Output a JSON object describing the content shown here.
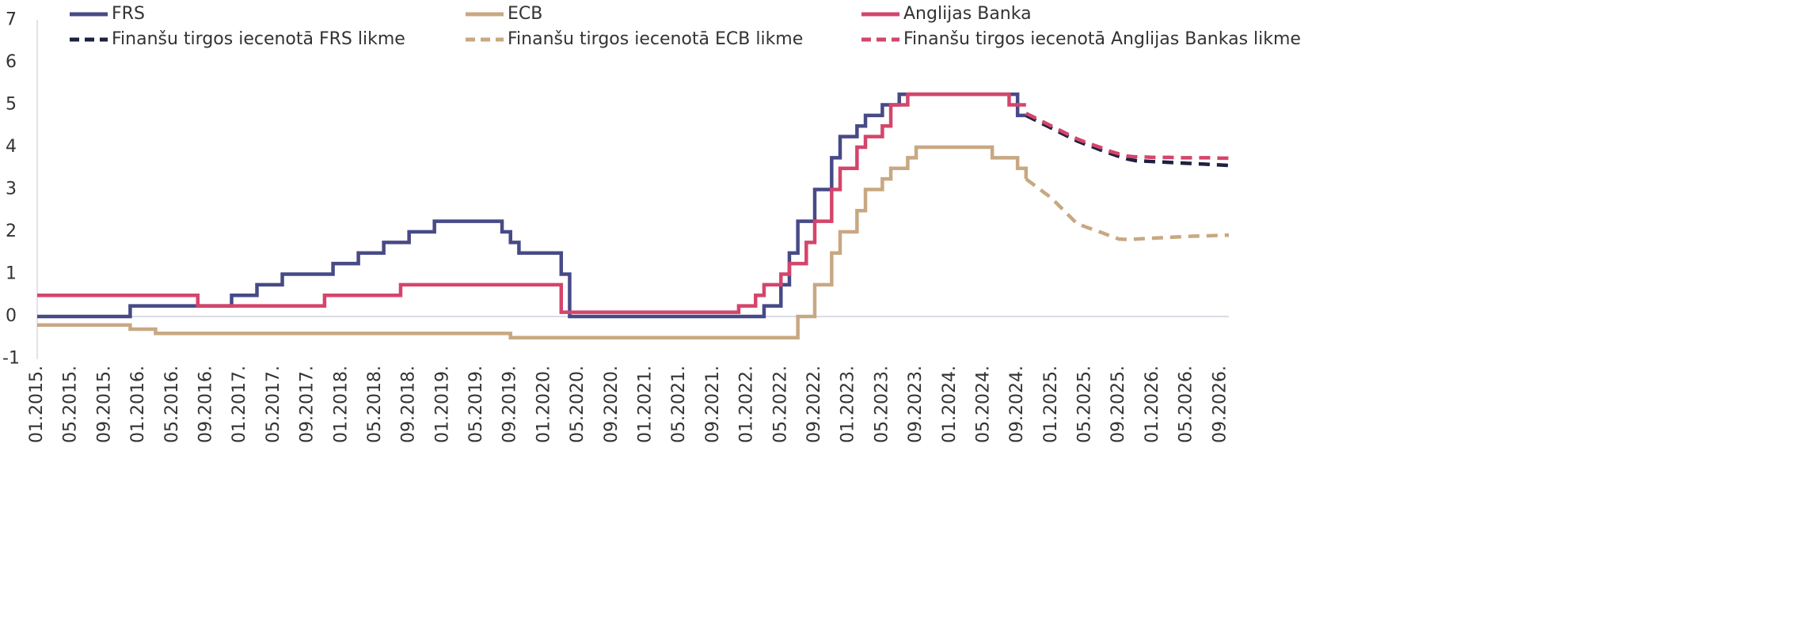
{
  "chart_data": {
    "type": "line",
    "legend": "top",
    "ylim": [
      -1,
      7
    ],
    "yticks": [
      -1,
      0,
      1,
      2,
      3,
      4,
      5,
      6,
      7
    ],
    "categories": [
      "01.2015.",
      null,
      null,
      null,
      "05.2015.",
      null,
      null,
      null,
      "09.2015.",
      null,
      null,
      null,
      "01.2016.",
      null,
      null,
      null,
      "05.2016.",
      null,
      null,
      null,
      "09.2016.",
      null,
      null,
      null,
      "01.2017.",
      null,
      null,
      null,
      "05.2017.",
      null,
      null,
      null,
      "09.2017.",
      null,
      null,
      null,
      "01.2018.",
      null,
      null,
      null,
      "05.2018.",
      null,
      null,
      null,
      "09.2018.",
      null,
      null,
      null,
      "01.2019.",
      null,
      null,
      null,
      "05.2019.",
      null,
      null,
      null,
      "09.2019.",
      null,
      null,
      null,
      "01.2020.",
      null,
      null,
      null,
      "05.2020.",
      null,
      null,
      null,
      "09.2020.",
      null,
      null,
      null,
      "01.2021.",
      null,
      null,
      null,
      "05.2021.",
      null,
      null,
      null,
      "09.2021.",
      null,
      null,
      null,
      "01.2022.",
      null,
      null,
      null,
      "05.2022.",
      null,
      null,
      null,
      "09.2022.",
      null,
      null,
      null,
      "01.2023.",
      null,
      null,
      null,
      "05.2023.",
      null,
      null,
      null,
      "09.2023.",
      null,
      null,
      null,
      "01.2024.",
      null,
      null,
      null,
      "05.2024.",
      null,
      null,
      null,
      "09.2024.",
      null,
      null,
      null,
      "01.2025.",
      null,
      null,
      null,
      "05.2025.",
      null,
      null,
      null,
      "09.2025.",
      null,
      null,
      null,
      "01.2026.",
      null,
      null,
      null,
      "05.2026.",
      null,
      null,
      null,
      "09.2026.",
      null
    ],
    "series": [
      {
        "name": "FRS",
        "color": "#474a86",
        "dash": false,
        "step": true,
        "values": [
          0,
          0,
          0,
          0,
          0,
          0,
          0,
          0,
          0,
          0,
          0,
          0.25,
          0.25,
          0.25,
          0.25,
          0.25,
          0.25,
          0.25,
          0.25,
          0.25,
          0.25,
          0.25,
          0.25,
          0.5,
          0.5,
          0.5,
          0.75,
          0.75,
          0.75,
          1,
          1,
          1,
          1,
          1,
          1,
          1.25,
          1.25,
          1.25,
          1.5,
          1.5,
          1.5,
          1.75,
          1.75,
          1.75,
          2,
          2,
          2,
          2.25,
          2.25,
          2.25,
          2.25,
          2.25,
          2.25,
          2.25,
          2.25,
          2,
          1.75,
          1.5,
          1.5,
          1.5,
          1.5,
          1.5,
          1,
          0,
          0,
          0,
          0,
          0,
          0,
          0,
          0,
          0,
          0,
          0,
          0,
          0,
          0,
          0,
          0,
          0,
          0,
          0,
          0,
          0,
          0,
          0,
          0.25,
          0.25,
          0.75,
          1.5,
          2.25,
          2.25,
          3,
          3,
          3.75,
          4.25,
          4.25,
          4.5,
          4.75,
          4.75,
          5,
          5,
          5.25,
          5.25,
          5.25,
          5.25,
          5.25,
          5.25,
          5.25,
          5.25,
          5.25,
          5.25,
          5.25,
          5.25,
          5.25,
          5.25,
          4.75,
          4.75,
          null,
          null,
          null,
          null,
          null,
          null,
          null,
          null,
          null,
          null,
          null,
          null,
          null,
          null,
          null,
          null,
          null,
          null,
          null,
          null,
          null,
          null,
          null,
          null
        ]
      },
      {
        "name": "ECB",
        "color": "#c8a882",
        "dash": false,
        "step": true,
        "values": [
          -0.2,
          -0.2,
          -0.2,
          -0.2,
          -0.2,
          -0.2,
          -0.2,
          -0.2,
          -0.2,
          -0.2,
          -0.2,
          -0.3,
          -0.3,
          -0.3,
          -0.4,
          -0.4,
          -0.4,
          -0.4,
          -0.4,
          -0.4,
          -0.4,
          -0.4,
          -0.4,
          -0.4,
          -0.4,
          -0.4,
          -0.4,
          -0.4,
          -0.4,
          -0.4,
          -0.4,
          -0.4,
          -0.4,
          -0.4,
          -0.4,
          -0.4,
          -0.4,
          -0.4,
          -0.4,
          -0.4,
          -0.4,
          -0.4,
          -0.4,
          -0.4,
          -0.4,
          -0.4,
          -0.4,
          -0.4,
          -0.4,
          -0.4,
          -0.4,
          -0.4,
          -0.4,
          -0.4,
          -0.4,
          -0.4,
          -0.5,
          -0.5,
          -0.5,
          -0.5,
          -0.5,
          -0.5,
          -0.5,
          -0.5,
          -0.5,
          -0.5,
          -0.5,
          -0.5,
          -0.5,
          -0.5,
          -0.5,
          -0.5,
          -0.5,
          -0.5,
          -0.5,
          -0.5,
          -0.5,
          -0.5,
          -0.5,
          -0.5,
          -0.5,
          -0.5,
          -0.5,
          -0.5,
          -0.5,
          -0.5,
          -0.5,
          -0.5,
          -0.5,
          -0.5,
          0,
          0,
          0.75,
          0.75,
          1.5,
          2,
          2,
          2.5,
          3,
          3,
          3.25,
          3.5,
          3.5,
          3.75,
          4,
          4,
          4,
          4,
          4,
          4,
          4,
          4,
          4,
          3.75,
          3.75,
          3.75,
          3.5,
          3.25,
          null,
          null,
          null,
          null,
          null,
          null,
          null,
          null,
          null,
          null,
          null,
          null,
          null,
          null,
          null,
          null,
          null,
          null,
          null,
          null,
          null,
          null,
          null,
          null
        ]
      },
      {
        "name": "Anglijas Banka",
        "color": "#d4456b",
        "dash": false,
        "step": true,
        "values": [
          0.5,
          0.5,
          0.5,
          0.5,
          0.5,
          0.5,
          0.5,
          0.5,
          0.5,
          0.5,
          0.5,
          0.5,
          0.5,
          0.5,
          0.5,
          0.5,
          0.5,
          0.5,
          0.5,
          0.25,
          0.25,
          0.25,
          0.25,
          0.25,
          0.25,
          0.25,
          0.25,
          0.25,
          0.25,
          0.25,
          0.25,
          0.25,
          0.25,
          0.25,
          0.5,
          0.5,
          0.5,
          0.5,
          0.5,
          0.5,
          0.5,
          0.5,
          0.5,
          0.75,
          0.75,
          0.75,
          0.75,
          0.75,
          0.75,
          0.75,
          0.75,
          0.75,
          0.75,
          0.75,
          0.75,
          0.75,
          0.75,
          0.75,
          0.75,
          0.75,
          0.75,
          0.75,
          0.1,
          0.1,
          0.1,
          0.1,
          0.1,
          0.1,
          0.1,
          0.1,
          0.1,
          0.1,
          0.1,
          0.1,
          0.1,
          0.1,
          0.1,
          0.1,
          0.1,
          0.1,
          0.1,
          0.1,
          0.1,
          0.25,
          0.25,
          0.5,
          0.75,
          0.75,
          1,
          1.25,
          1.25,
          1.75,
          2.25,
          2.25,
          3,
          3.5,
          3.5,
          4,
          4.25,
          4.25,
          4.5,
          5,
          5,
          5.25,
          5.25,
          5.25,
          5.25,
          5.25,
          5.25,
          5.25,
          5.25,
          5.25,
          5.25,
          5.25,
          5.25,
          5,
          5,
          5,
          null,
          null,
          null,
          null,
          null,
          null,
          null,
          null,
          null,
          null,
          null,
          null,
          null,
          null,
          null,
          null,
          null,
          null,
          null,
          null,
          null,
          null,
          null,
          null
        ]
      },
      {
        "name": "Finanšu tirgos iecenotā FRS likme",
        "color": "#1e2040",
        "dash": true,
        "step": false,
        "values": [
          null,
          null,
          null,
          null,
          null,
          null,
          null,
          null,
          null,
          null,
          null,
          null,
          null,
          null,
          null,
          null,
          null,
          null,
          null,
          null,
          null,
          null,
          null,
          null,
          null,
          null,
          null,
          null,
          null,
          null,
          null,
          null,
          null,
          null,
          null,
          null,
          null,
          null,
          null,
          null,
          null,
          null,
          null,
          null,
          null,
          null,
          null,
          null,
          null,
          null,
          null,
          null,
          null,
          null,
          null,
          null,
          null,
          null,
          null,
          null,
          null,
          null,
          null,
          null,
          null,
          null,
          null,
          null,
          null,
          null,
          null,
          null,
          null,
          null,
          null,
          null,
          null,
          null,
          null,
          null,
          null,
          null,
          null,
          null,
          null,
          null,
          null,
          null,
          null,
          null,
          null,
          null,
          null,
          null,
          null,
          null,
          null,
          null,
          null,
          null,
          null,
          null,
          null,
          null,
          null,
          null,
          null,
          null,
          null,
          null,
          null,
          null,
          null,
          null,
          null,
          null,
          null,
          4.75,
          4.65,
          4.55,
          4.45,
          4.35,
          4.25,
          4.15,
          4.07,
          4.0,
          3.92,
          3.85,
          3.78,
          3.72,
          3.68,
          3.67,
          3.66,
          3.65,
          3.64,
          3.63,
          3.62,
          3.61,
          3.6,
          3.59,
          3.58,
          3.57
        ]
      },
      {
        "name": "Finanšu tirgos iecenotā ECB likme",
        "color": "#c8a882",
        "dash": true,
        "step": false,
        "values": [
          null,
          null,
          null,
          null,
          null,
          null,
          null,
          null,
          null,
          null,
          null,
          null,
          null,
          null,
          null,
          null,
          null,
          null,
          null,
          null,
          null,
          null,
          null,
          null,
          null,
          null,
          null,
          null,
          null,
          null,
          null,
          null,
          null,
          null,
          null,
          null,
          null,
          null,
          null,
          null,
          null,
          null,
          null,
          null,
          null,
          null,
          null,
          null,
          null,
          null,
          null,
          null,
          null,
          null,
          null,
          null,
          null,
          null,
          null,
          null,
          null,
          null,
          null,
          null,
          null,
          null,
          null,
          null,
          null,
          null,
          null,
          null,
          null,
          null,
          null,
          null,
          null,
          null,
          null,
          null,
          null,
          null,
          null,
          null,
          null,
          null,
          null,
          null,
          null,
          null,
          null,
          null,
          null,
          null,
          null,
          null,
          null,
          null,
          null,
          null,
          null,
          null,
          null,
          null,
          null,
          null,
          null,
          null,
          null,
          null,
          null,
          null,
          null,
          null,
          null,
          null,
          null,
          3.25,
          3.1,
          2.95,
          2.8,
          2.6,
          2.4,
          2.2,
          2.12,
          2.05,
          1.98,
          1.9,
          1.83,
          1.82,
          1.83,
          1.84,
          1.85,
          1.86,
          1.87,
          1.88,
          1.89,
          1.9,
          1.9,
          1.91,
          1.92,
          1.92
        ]
      },
      {
        "name": "Finanšu tirgos iecenotā Anglijas Bankas likme",
        "color": "#d4456b",
        "dash": true,
        "step": false,
        "values": [
          null,
          null,
          null,
          null,
          null,
          null,
          null,
          null,
          null,
          null,
          null,
          null,
          null,
          null,
          null,
          null,
          null,
          null,
          null,
          null,
          null,
          null,
          null,
          null,
          null,
          null,
          null,
          null,
          null,
          null,
          null,
          null,
          null,
          null,
          null,
          null,
          null,
          null,
          null,
          null,
          null,
          null,
          null,
          null,
          null,
          null,
          null,
          null,
          null,
          null,
          null,
          null,
          null,
          null,
          null,
          null,
          null,
          null,
          null,
          null,
          null,
          null,
          null,
          null,
          null,
          null,
          null,
          null,
          null,
          null,
          null,
          null,
          null,
          null,
          null,
          null,
          null,
          null,
          null,
          null,
          null,
          null,
          null,
          null,
          null,
          null,
          null,
          null,
          null,
          null,
          null,
          null,
          null,
          null,
          null,
          null,
          null,
          null,
          null,
          null,
          null,
          null,
          null,
          null,
          null,
          null,
          null,
          null,
          null,
          null,
          null,
          null,
          null,
          null,
          null,
          null,
          null,
          4.8,
          4.7,
          4.6,
          4.5,
          4.4,
          4.3,
          4.2,
          4.12,
          4.05,
          3.98,
          3.9,
          3.84,
          3.79,
          3.77,
          3.77,
          3.76,
          3.76,
          3.76,
          3.75,
          3.75,
          3.75,
          3.75,
          3.75,
          3.74,
          3.74
        ]
      }
    ]
  }
}
